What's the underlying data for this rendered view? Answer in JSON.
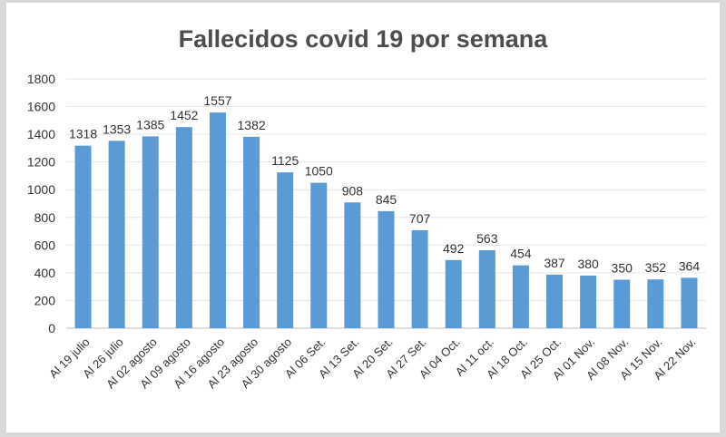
{
  "chart_data": {
    "type": "bar",
    "title": "Fallecidos  covid  19  por  semana",
    "xlabel": "",
    "ylabel": "",
    "ylim": [
      0,
      1800
    ],
    "yticks": [
      0,
      200,
      400,
      600,
      800,
      1000,
      1200,
      1400,
      1600,
      1800
    ],
    "grid": true,
    "legend": "none",
    "bar_color": "#5b9bd5",
    "categories": [
      "Al 19 julio",
      "Al 26 julio",
      "Al 02 agosto",
      "Al 09 agosto",
      "Al 16 agosto",
      "Al 23 agosto",
      "Al 30 agosto",
      "Al 06 Set.",
      "Al 13 Set.",
      "Al 20 Set.",
      "Al 27 Set.",
      "Al 04 Oct.",
      "Al 11 oct.",
      "Al 18 Oct.",
      "Al 25 Oct.",
      "Al 01 Nov.",
      "Al 08 Nov.",
      "Al 15 Nov.",
      "Al 22 Nov."
    ],
    "values": [
      1318,
      1353,
      1385,
      1452,
      1557,
      1382,
      1125,
      1050,
      908,
      845,
      707,
      492,
      563,
      454,
      387,
      380,
      350,
      352,
      364
    ]
  }
}
